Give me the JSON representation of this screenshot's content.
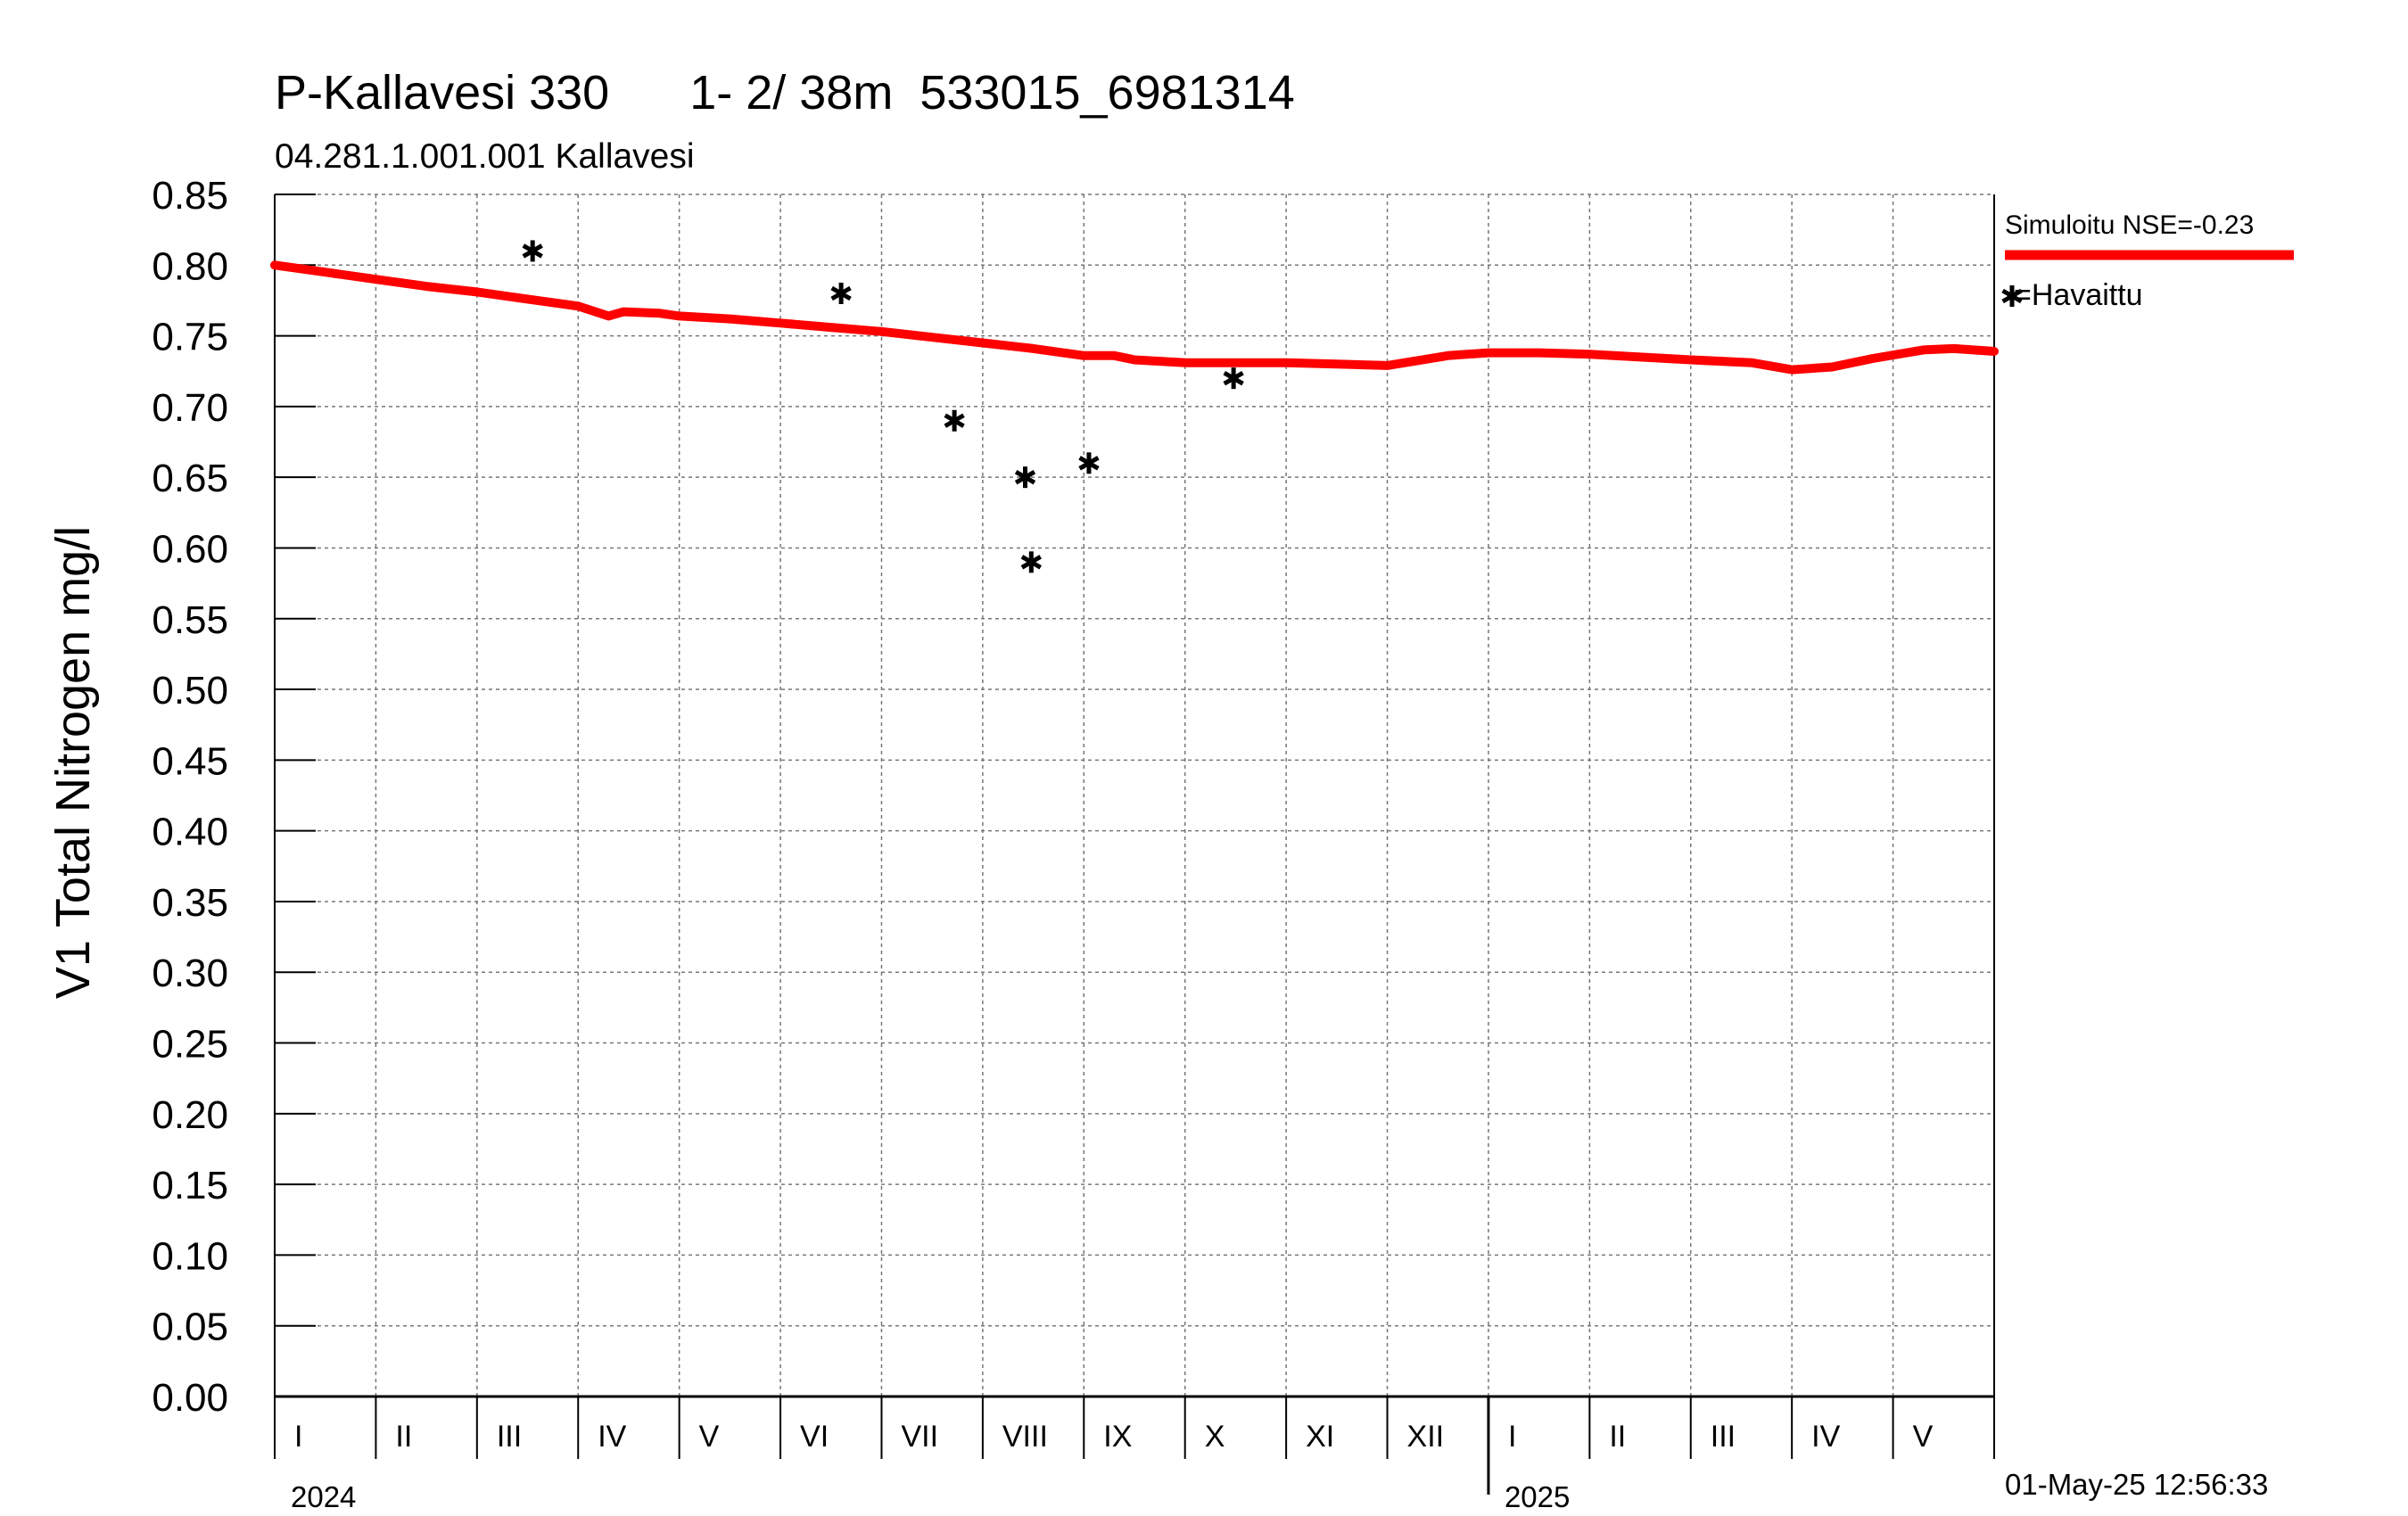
{
  "chart_data": {
    "type": "line",
    "title": "P-Kallavesi 330      1- 2/ 38m  533015_6981314",
    "subtitle": "04.281.1.001.001 Kallavesi",
    "ylabel": "V1 Total Nitrogen mg/l",
    "xlabel": "",
    "ylim": [
      0,
      0.85
    ],
    "yticks": [
      "0.00",
      "0.05",
      "0.10",
      "0.15",
      "0.20",
      "0.25",
      "0.30",
      "0.35",
      "0.40",
      "0.45",
      "0.50",
      "0.55",
      "0.60",
      "0.65",
      "0.70",
      "0.75",
      "0.80",
      "0.85"
    ],
    "x_range_months": [
      0,
      17
    ],
    "months": [
      {
        "label": "I",
        "start": 0
      },
      {
        "label": "II",
        "start": 1
      },
      {
        "label": "III",
        "start": 2
      },
      {
        "label": "IV",
        "start": 3
      },
      {
        "label": "V",
        "start": 4
      },
      {
        "label": "VI",
        "start": 5
      },
      {
        "label": "VII",
        "start": 6
      },
      {
        "label": "VIII",
        "start": 7
      },
      {
        "label": "IX",
        "start": 8
      },
      {
        "label": "X",
        "start": 9
      },
      {
        "label": "XI",
        "start": 10
      },
      {
        "label": "XII",
        "start": 11
      },
      {
        "label": "I",
        "start": 12
      },
      {
        "label": "II",
        "start": 13
      },
      {
        "label": "III",
        "start": 14
      },
      {
        "label": "IV",
        "start": 15
      },
      {
        "label": "V",
        "start": 16
      }
    ],
    "years": [
      {
        "label": "2024",
        "start": 0
      },
      {
        "label": "2025",
        "start": 12
      }
    ],
    "series": [
      {
        "name": "Simuloitu NSE=-0.23",
        "kind": "line",
        "color": "#ff0000",
        "x": [
          0,
          0.5,
          1,
          1.5,
          2,
          2.5,
          3.0,
          3.3,
          3.45,
          3.8,
          4.0,
          4.5,
          5,
          5.5,
          6,
          6.5,
          7,
          7.5,
          8,
          8.3,
          8.5,
          9,
          9.5,
          10,
          10.5,
          11,
          11.6,
          12,
          12.5,
          13,
          13.5,
          14,
          14.6,
          15.0,
          15.4,
          15.8,
          16.3,
          16.6,
          17
        ],
        "values": [
          0.8,
          0.795,
          0.79,
          0.785,
          0.781,
          0.776,
          0.771,
          0.764,
          0.767,
          0.766,
          0.764,
          0.762,
          0.759,
          0.756,
          0.753,
          0.749,
          0.745,
          0.741,
          0.736,
          0.736,
          0.733,
          0.731,
          0.731,
          0.731,
          0.73,
          0.729,
          0.736,
          0.738,
          0.738,
          0.737,
          0.735,
          0.733,
          0.731,
          0.726,
          0.728,
          0.734,
          0.74,
          0.741,
          0.739
        ]
      },
      {
        "name": "Havaittu",
        "kind": "scatter",
        "color": "#000000",
        "x": [
          2.55,
          5.6,
          6.72,
          7.42,
          7.48,
          8.05,
          9.48
        ],
        "values": [
          0.81,
          0.78,
          0.69,
          0.65,
          0.59,
          0.66,
          0.72
        ]
      }
    ],
    "legend": {
      "position": "top-right",
      "line_label": "Simuloitu NSE=-0.23",
      "marker_label": "=Havaittu"
    },
    "grid": true,
    "timestamp": "01-May-25 12:56:33"
  }
}
